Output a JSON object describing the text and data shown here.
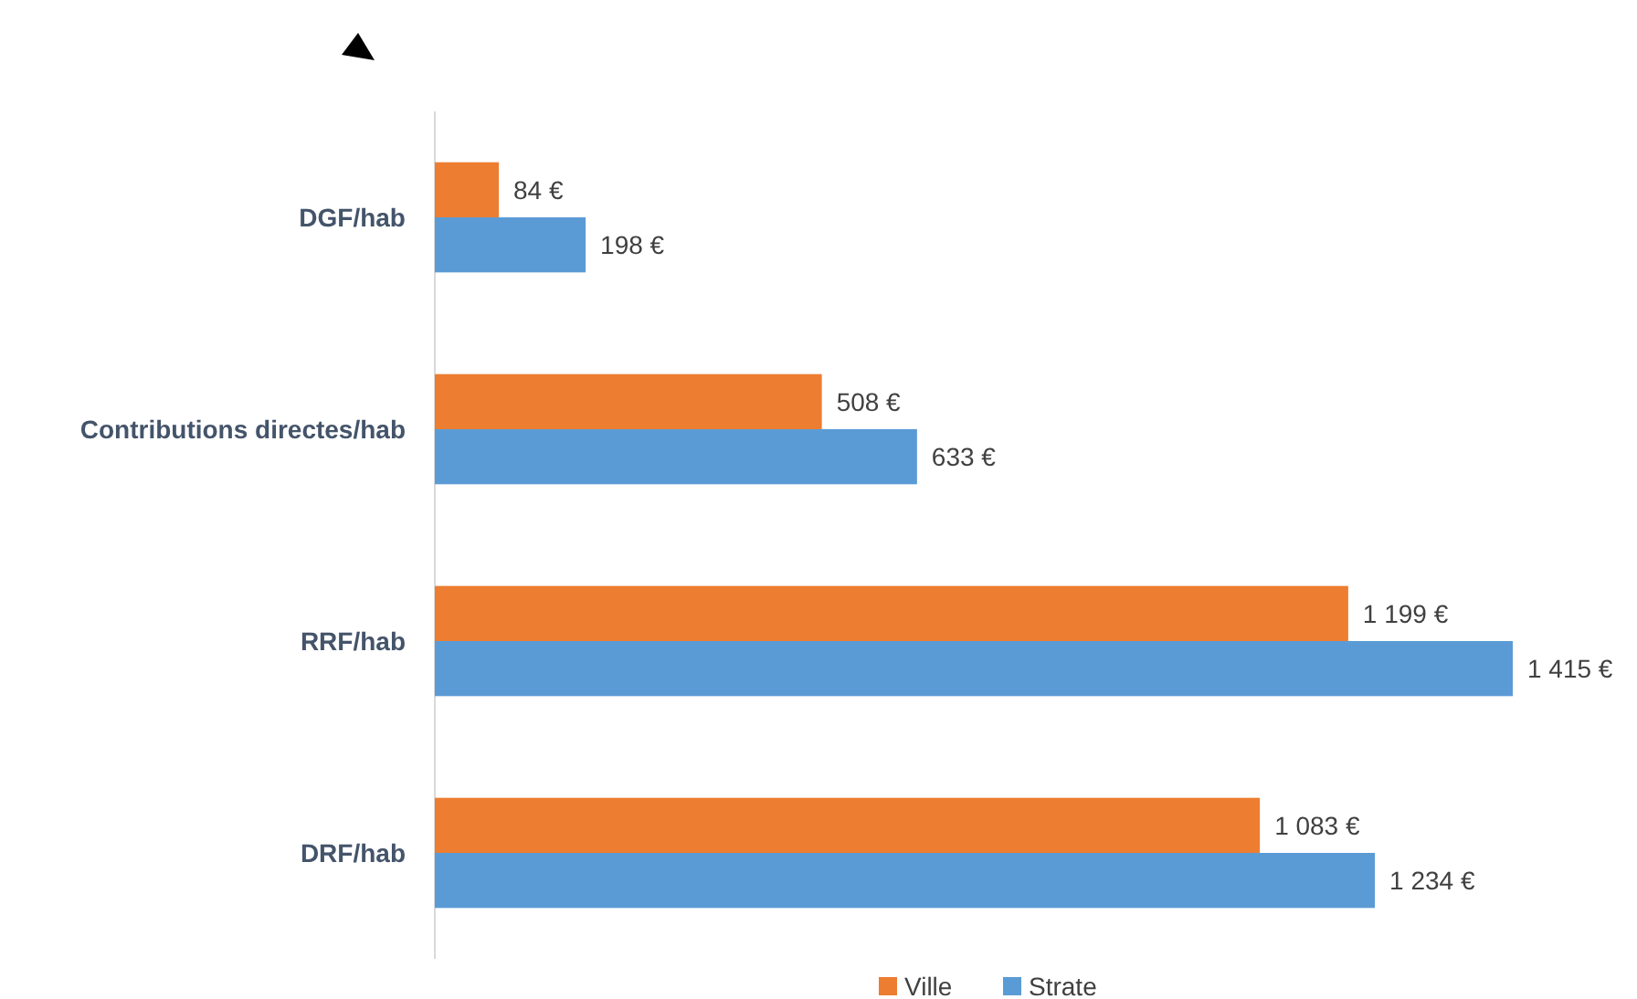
{
  "chart_data": {
    "type": "bar",
    "orientation": "horizontal",
    "categories": [
      "DGF/hab",
      "Contributions directes/hab",
      "RRF/hab",
      "DRF/hab"
    ],
    "series": [
      {
        "name": "Ville",
        "color": "#ed7d31",
        "values": [
          84,
          508,
          1199,
          1083
        ],
        "value_labels": [
          "84 €",
          "508 €",
          "1 199 €",
          "1 083 €"
        ]
      },
      {
        "name": "Strate",
        "color": "#5b9bd5",
        "values": [
          198,
          633,
          1415,
          1234
        ],
        "value_labels": [
          "198 €",
          "633 €",
          "1 415 €",
          "1 234 €"
        ]
      }
    ],
    "legend": "bottom"
  }
}
